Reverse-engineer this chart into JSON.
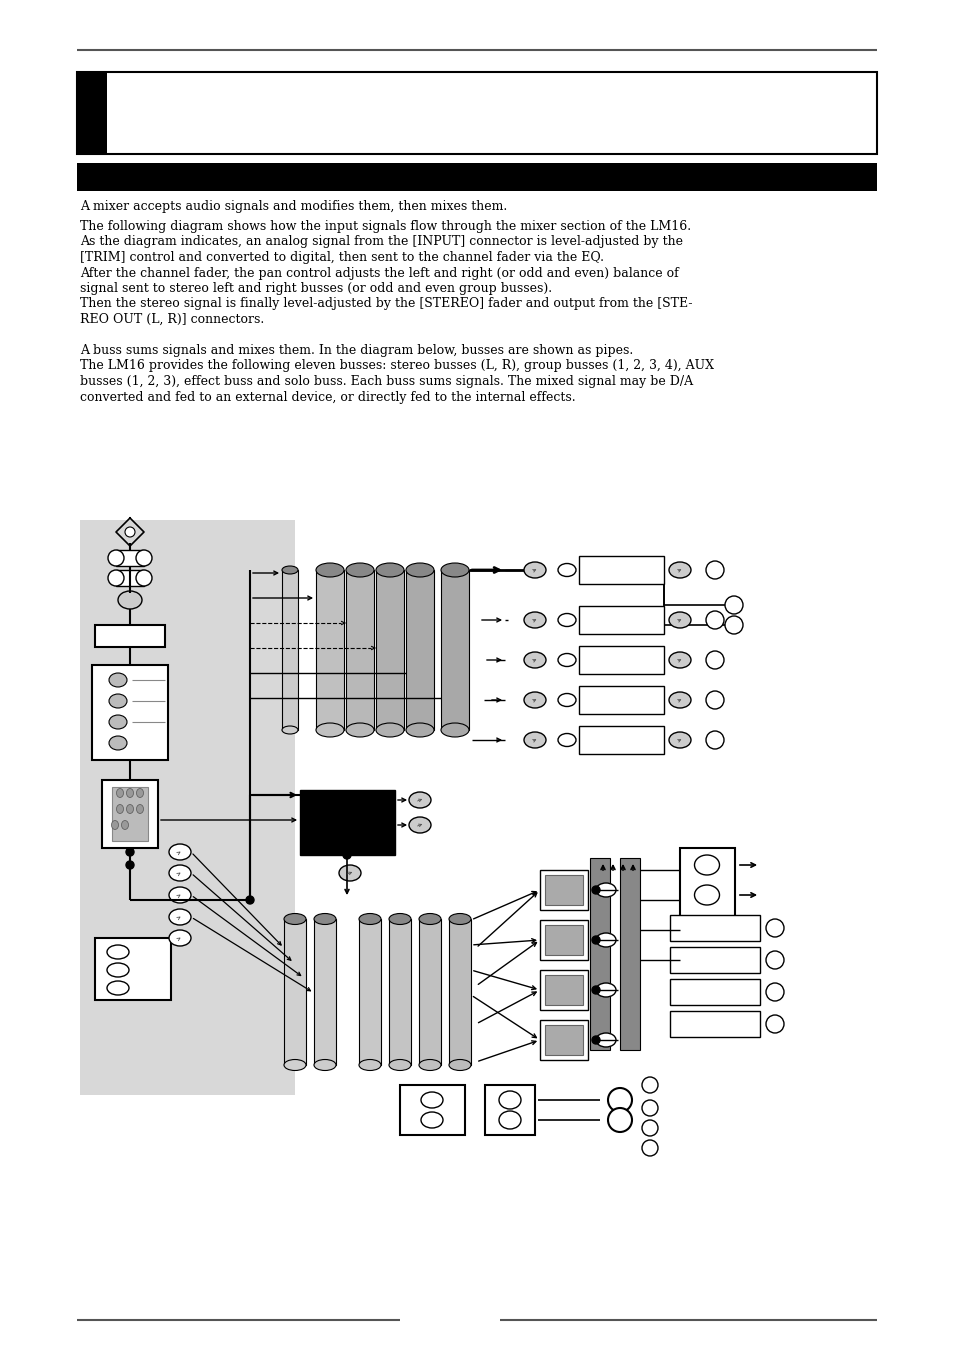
{
  "page_bg": "#ffffff",
  "para1": "A mixer accepts audio signals and modifies them, then mixes them.",
  "para2a": "The following diagram shows how the input signals flow through the mixer section of the LM16.",
  "para2b": "As the diagram indicates, an analog signal from the [INPUT] connector is level-adjusted by the",
  "para2c": "[TRIM] control and converted to digital, then sent to the channel fader via the EQ.",
  "para2d": "After the channel fader, the pan control adjusts the left and right (or odd and even) balance of",
  "para2e": "signal sent to stereo left and right busses (or odd and even group busses).",
  "para2f": "Then the stereo signal is finally level-adjusted by the [STEREO] fader and output from the [STE-",
  "para2g": "REO OUT (L, R)] connectors.",
  "para3a": "A buss sums signals and mixes them. In the diagram below, busses are shown as pipes.",
  "para3b": "The LM16 provides the following eleven busses: stereo busses (L, R), group busses (1, 2, 3, 4), AUX",
  "para3c": "busses (1, 2, 3), effect buss and solo buss. Each buss sums signals. The mixed signal may be D/A",
  "para3d": "converted and fed to an external device, or directly fed to the internal effects."
}
